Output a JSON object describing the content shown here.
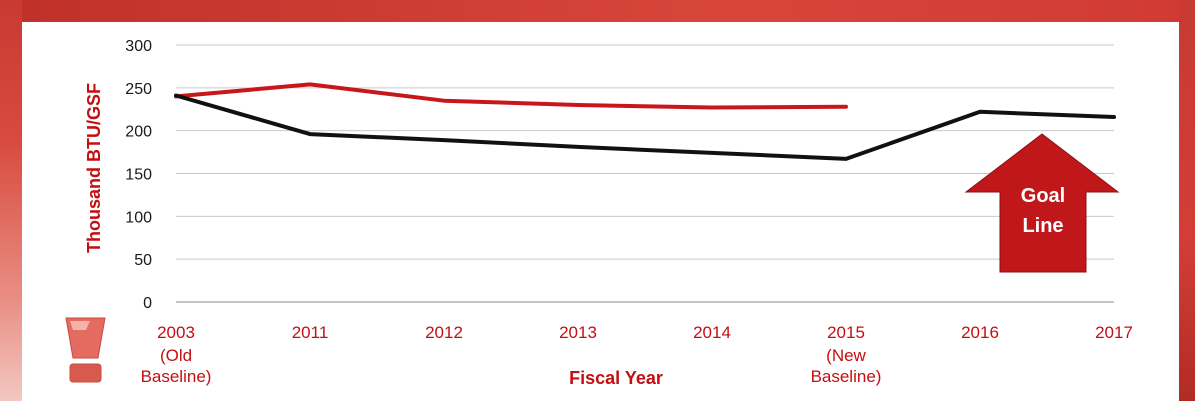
{
  "chart_data": {
    "type": "line",
    "categories": [
      "2003",
      "2011",
      "2012",
      "2013",
      "2014",
      "2015",
      "2016",
      "2017"
    ],
    "category_sublabels": [
      [
        "(Old",
        "Baseline)"
      ],
      [],
      [],
      [],
      [],
      [
        "(New",
        "Baseline)"
      ],
      [],
      []
    ],
    "series": [
      {
        "values": [
          240,
          254,
          235,
          230,
          227,
          228,
          null,
          null
        ],
        "color": "#c8171a"
      },
      {
        "values": [
          241,
          196,
          189,
          181,
          174,
          167,
          222,
          216
        ],
        "color": "#111111"
      }
    ],
    "ylabel": "Thousand BTU/GSF",
    "xlabel": "Fiscal Year",
    "ylim": [
      0,
      300
    ],
    "yticks": [
      0,
      50,
      100,
      150,
      200,
      250,
      300
    ],
    "grid": true,
    "annotation": {
      "lines": [
        "Goal",
        "Line"
      ],
      "shape": "up-arrow",
      "color": "#c0171a"
    }
  }
}
